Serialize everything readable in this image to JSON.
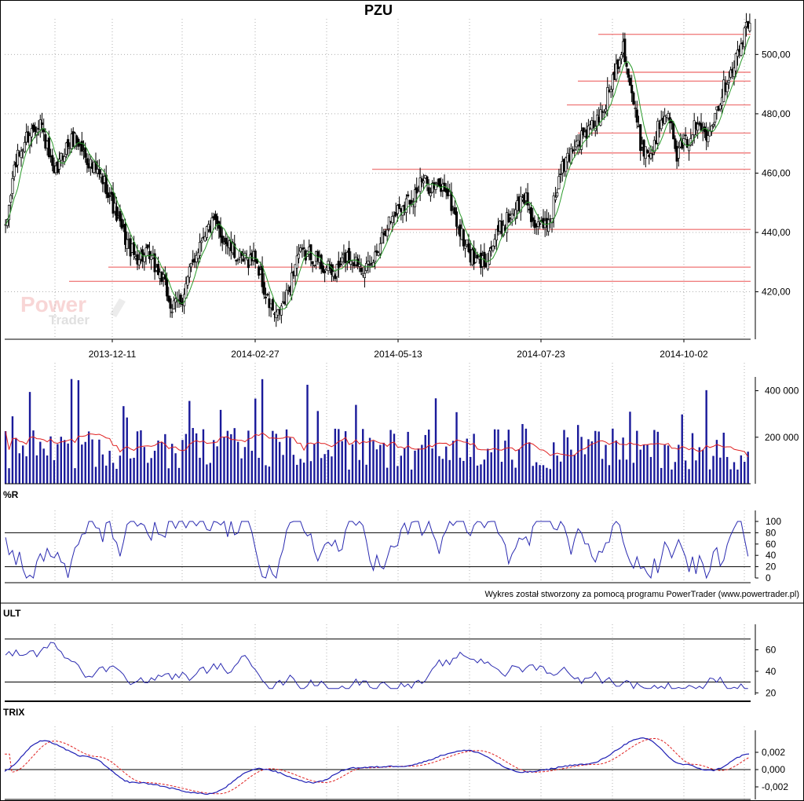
{
  "chart_data": [
    {
      "type": "candlestick",
      "title": "PZU",
      "x_labels": [
        "2013-12-11",
        "2014-02-27",
        "2014-05-13",
        "2014-07-23",
        "2014-10-02"
      ],
      "y_ticks": [
        "420,00",
        "440,00",
        "460,00",
        "480,00",
        "500,00"
      ],
      "ylim": [
        404,
        512
      ],
      "overlay": "moving average (green)",
      "support_resistance_levels": [
        423.5,
        428.3,
        441.0,
        461.3,
        466.8,
        473.5,
        483.0,
        491.0,
        494.0,
        506.8
      ],
      "trend": [
        [
          0,
          440
        ],
        [
          5,
          462
        ],
        [
          12,
          472
        ],
        [
          20,
          478
        ],
        [
          28,
          458
        ],
        [
          34,
          468
        ],
        [
          40,
          472
        ],
        [
          50,
          462
        ],
        [
          58,
          456
        ],
        [
          66,
          442
        ],
        [
          74,
          432
        ],
        [
          82,
          432
        ],
        [
          90,
          425
        ],
        [
          96,
          414
        ],
        [
          102,
          418
        ],
        [
          108,
          430
        ],
        [
          114,
          440
        ],
        [
          120,
          443
        ],
        [
          128,
          436
        ],
        [
          136,
          430
        ],
        [
          144,
          432
        ],
        [
          150,
          418
        ],
        [
          156,
          411
        ],
        [
          162,
          418
        ],
        [
          168,
          432
        ],
        [
          176,
          433
        ],
        [
          184,
          428
        ],
        [
          190,
          426
        ],
        [
          196,
          432
        ],
        [
          204,
          430
        ],
        [
          210,
          427
        ],
        [
          218,
          441
        ],
        [
          226,
          448
        ],
        [
          234,
          452
        ],
        [
          240,
          457
        ],
        [
          248,
          455
        ],
        [
          254,
          455
        ],
        [
          262,
          440
        ],
        [
          270,
          430
        ],
        [
          276,
          430
        ],
        [
          284,
          440
        ],
        [
          292,
          447
        ],
        [
          300,
          452
        ],
        [
          306,
          440
        ],
        [
          314,
          445
        ],
        [
          320,
          460
        ],
        [
          328,
          470
        ],
        [
          336,
          474
        ],
        [
          344,
          480
        ],
        [
          350,
          492
        ],
        [
          356,
          504
        ],
        [
          360,
          490
        ],
        [
          366,
          470
        ],
        [
          372,
          466
        ],
        [
          378,
          479
        ],
        [
          382,
          483
        ],
        [
          386,
          466
        ],
        [
          392,
          470
        ],
        [
          398,
          476
        ],
        [
          404,
          474
        ],
        [
          410,
          482
        ],
        [
          416,
          492
        ],
        [
          422,
          500
        ],
        [
          428,
          510
        ]
      ]
    },
    {
      "type": "bar",
      "name": "volume",
      "y_ticks": [
        "200 000",
        "400 000"
      ],
      "overlay": "volume average (red)"
    },
    {
      "type": "line",
      "name": "%R",
      "y_ticks": [
        "100",
        "80",
        "60",
        "40",
        "20",
        "0"
      ],
      "reference_levels": [
        20,
        80
      ]
    },
    {
      "type": "line",
      "name": "ULT",
      "y_ticks": [
        "60",
        "40",
        "20"
      ],
      "reference_levels": [
        30,
        70
      ]
    },
    {
      "type": "line",
      "name": "TRIX",
      "y_ticks": [
        "0,002",
        "0,000",
        "-0,002"
      ],
      "series": [
        {
          "role": "TRIX",
          "color": "#1e1eb4"
        },
        {
          "role": "signal",
          "color": "#e02020"
        }
      ]
    }
  ],
  "footer": {
    "credit": "Wykres został stworzony za pomocą programu PowerTrader (www.powertrader.pl)"
  },
  "watermark": {
    "line1": "Power",
    "line2": "Trader"
  },
  "colors": {
    "candle": "#000000",
    "ma": "#2a9a2a",
    "levels": "#f08080",
    "volume": "#1a1a9a",
    "volume_avg": "#e02020",
    "osc": "#2a2ab0",
    "grid": "#b0b0b0"
  }
}
